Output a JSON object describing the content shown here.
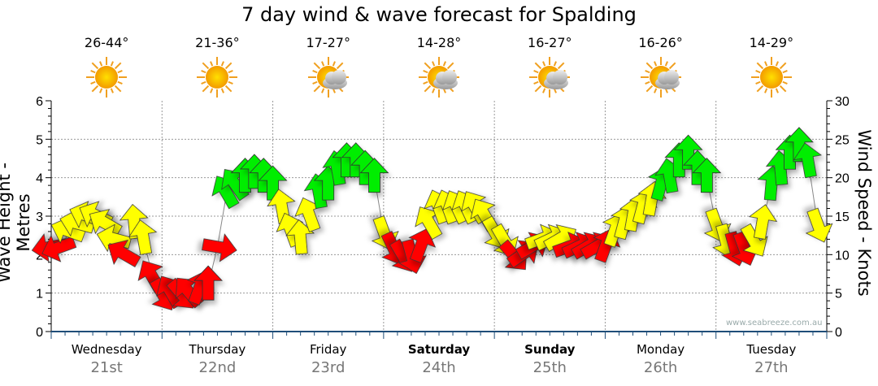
{
  "title": "7 day wind & wave forecast for Spalding",
  "days": [
    {
      "name": "Wednesday",
      "date": "21st",
      "temp": "26-44°",
      "icon": "sun",
      "bold": false
    },
    {
      "name": "Thursday",
      "date": "22nd",
      "temp": "21-36°",
      "icon": "sun",
      "bold": false
    },
    {
      "name": "Friday",
      "date": "23rd",
      "temp": "17-27°",
      "icon": "sun-cloud",
      "bold": false
    },
    {
      "name": "Saturday",
      "date": "24th",
      "temp": "14-28°",
      "icon": "sun-cloud",
      "bold": true
    },
    {
      "name": "Sunday",
      "date": "25th",
      "temp": "16-27°",
      "icon": "sun-cloud",
      "bold": true
    },
    {
      "name": "Monday",
      "date": "26th",
      "temp": "16-26°",
      "icon": "sun-cloud",
      "bold": false
    },
    {
      "name": "Tuesday",
      "date": "27th",
      "temp": "14-29°",
      "icon": "sun",
      "bold": false
    }
  ],
  "credit": "www.seabreeze.com.au",
  "colors": {
    "low": "#ff0000",
    "mid": "#ffff00",
    "high": "#00ee00",
    "axis": "#1f4e79",
    "grid": "#999999"
  },
  "chart_data": {
    "type": "line",
    "title": "7 day wind & wave forecast for Spalding",
    "ylabel": "Wave Height - Metres",
    "ylabel_right": "Wind Speed - Knots",
    "ylim": [
      0,
      6
    ],
    "ylim_right": [
      0,
      30
    ],
    "yticks": [
      "0",
      "1",
      "2",
      "3",
      "4",
      "5",
      "6"
    ],
    "yticks_right": [
      "0",
      "5",
      "10",
      "15",
      "20",
      "25",
      "30"
    ],
    "x_unit": "hours from Wednesday 00:00",
    "xlim": [
      0,
      168
    ],
    "color_thresholds_knots": {
      "red_below": 12,
      "green_from": 18
    },
    "series": [
      {
        "name": "Wind speed (knots) with direction arrows",
        "hours": [
          0,
          2,
          4,
          6,
          8,
          10,
          12,
          14,
          16,
          18,
          20,
          22,
          24,
          26,
          28,
          30,
          32,
          34,
          36,
          38,
          40,
          42,
          44,
          46,
          48,
          50,
          52,
          54,
          56,
          58,
          60,
          62,
          64,
          66,
          68,
          70,
          72,
          74,
          76,
          78,
          80,
          82,
          84,
          86,
          88,
          90,
          92,
          94,
          96,
          98,
          100,
          102,
          104,
          106,
          108,
          110,
          112,
          114,
          116,
          118,
          120,
          122,
          124,
          126,
          128,
          130,
          132,
          134,
          136,
          138,
          140,
          142,
          144,
          146,
          148,
          150,
          152,
          154,
          156,
          158,
          160,
          162,
          164,
          166
        ],
        "values": [
          11,
          11,
          13,
          14,
          15,
          15,
          14,
          12,
          10,
          14,
          12,
          7,
          5,
          5,
          5,
          5,
          5.5,
          6,
          11,
          18,
          19,
          20,
          20.5,
          20,
          19,
          16,
          13,
          12,
          15,
          18,
          19,
          21,
          22,
          22,
          21,
          20,
          13,
          11,
          10,
          10,
          11,
          14,
          16,
          16,
          16,
          16,
          16,
          15,
          13,
          12,
          10,
          10,
          11,
          12,
          12,
          12,
          11,
          11,
          11,
          11,
          11,
          13,
          14,
          15,
          16,
          17,
          19,
          20,
          22,
          23,
          21,
          20,
          14,
          12,
          11,
          11,
          12,
          14,
          19,
          21,
          23,
          24,
          22,
          14
        ],
        "direction_deg": [
          -100,
          -110,
          -70,
          -75,
          -70,
          -65,
          -60,
          -75,
          -60,
          -5,
          -10,
          -30,
          150,
          -30,
          140,
          -40,
          20,
          0,
          100,
          -30,
          -35,
          0,
          0,
          0,
          0,
          -10,
          -20,
          -5,
          -20,
          -10,
          0,
          -10,
          0,
          0,
          0,
          0,
          160,
          155,
          150,
          165,
          20,
          -30,
          -20,
          -20,
          -25,
          -25,
          -30,
          -30,
          150,
          150,
          140,
          55,
          60,
          70,
          65,
          60,
          70,
          65,
          60,
          60,
          20,
          20,
          15,
          10,
          15,
          10,
          15,
          -10,
          0,
          0,
          0,
          0,
          160,
          165,
          165,
          160,
          150,
          10,
          5,
          -5,
          0,
          0,
          -10,
          160
        ]
      }
    ]
  }
}
